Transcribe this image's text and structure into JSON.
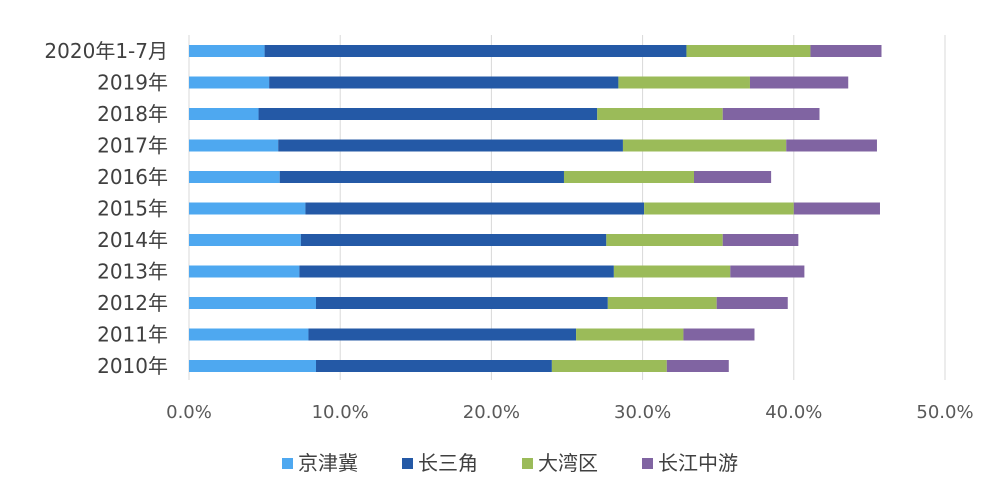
{
  "chart_data": {
    "type": "bar",
    "orientation": "horizontal",
    "stacked": true,
    "categories": [
      "2020年1-7月",
      "2019年",
      "2018年",
      "2017年",
      "2016年",
      "2015年",
      "2014年",
      "2013年",
      "2012年",
      "2011年",
      "2010年"
    ],
    "series": [
      {
        "name": "京津冀",
        "color": "#4ea8f0",
        "values": [
          5.0,
          5.3,
          4.6,
          5.9,
          6.0,
          7.7,
          7.4,
          7.3,
          8.4,
          7.9,
          8.4
        ]
      },
      {
        "name": "长三角",
        "color": "#2459a6",
        "values": [
          27.9,
          23.1,
          22.4,
          22.8,
          18.8,
          22.4,
          20.2,
          20.8,
          19.3,
          17.7,
          15.6
        ]
      },
      {
        "name": "大湾区",
        "color": "#9bbb59",
        "values": [
          8.2,
          8.7,
          8.3,
          10.8,
          8.6,
          9.9,
          7.7,
          7.7,
          7.2,
          7.1,
          7.6
        ]
      },
      {
        "name": "长江中游",
        "color": "#8064a2",
        "values": [
          4.7,
          6.5,
          6.4,
          6.0,
          5.1,
          5.7,
          5.0,
          4.9,
          4.7,
          4.7,
          4.1
        ]
      }
    ],
    "xlim": [
      0,
      50
    ],
    "xticks": [
      "0.0%",
      "10.0%",
      "20.0%",
      "30.0%",
      "40.0%",
      "50.0%"
    ],
    "grid": true,
    "legend_position": "bottom"
  }
}
